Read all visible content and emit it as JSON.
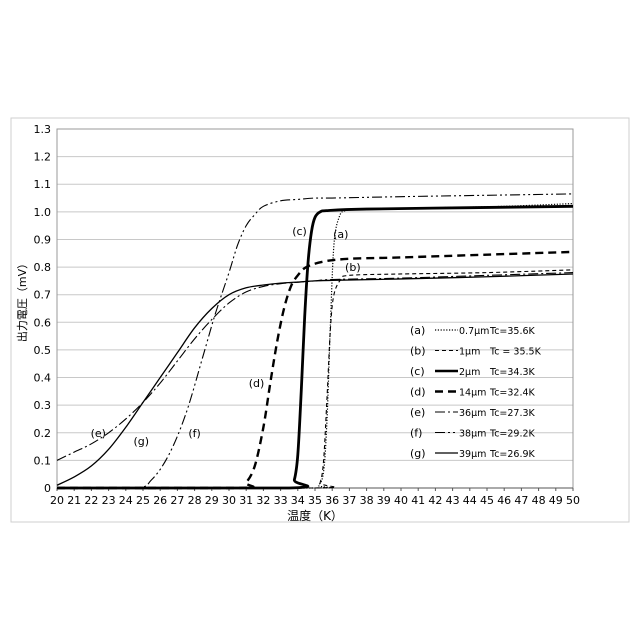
{
  "chart_data": {
    "type": "line",
    "xlabel": "温度（K）",
    "ylabel": "出力電圧（mV）",
    "xlim": [
      20,
      50
    ],
    "ylim": [
      0,
      1.3
    ],
    "xticks": [
      20,
      21,
      22,
      23,
      24,
      25,
      26,
      27,
      28,
      29,
      30,
      31,
      32,
      33,
      34,
      35,
      36,
      37,
      38,
      39,
      40,
      41,
      42,
      43,
      44,
      45,
      46,
      47,
      48,
      49,
      50
    ],
    "yticks": [
      "0",
      "0.1",
      "0.2",
      "0.3",
      "0.4",
      "0.5",
      "0.6",
      "0.7",
      "0.8",
      "0.9",
      "1.0",
      "1.1",
      "1.2",
      "1.3"
    ],
    "grid": "horizontal",
    "legend_position": "lower-right",
    "series": [
      {
        "name": "(a) 0.7μm Tc=35.6K",
        "tag": "(a)",
        "thickness": "0.7μm",
        "tc": "Tc=35.6K",
        "style": "dotted",
        "width": 1.2,
        "x": [
          20,
          34.8,
          35.2,
          35.5,
          35.7,
          35.9,
          36.1,
          36.4,
          36.8,
          38,
          42,
          46,
          50
        ],
        "y": [
          0,
          0,
          0.01,
          0.06,
          0.25,
          0.6,
          0.88,
          0.98,
          1.005,
          1.01,
          1.015,
          1.02,
          1.03
        ]
      },
      {
        "name": "(b) 1μm Tc = 35.5K",
        "tag": "(b)",
        "thickness": "1μm",
        "tc": "Tc = 35.5K",
        "style": "dashed-fine",
        "width": 1.1,
        "x": [
          20,
          35.0,
          35.3,
          35.5,
          35.7,
          35.9,
          36.1,
          36.5,
          37,
          40,
          45,
          50
        ],
        "y": [
          0,
          0,
          0.02,
          0.1,
          0.33,
          0.58,
          0.7,
          0.755,
          0.77,
          0.775,
          0.78,
          0.79
        ]
      },
      {
        "name": "(c) 2μm Tc=34.3K",
        "tag": "(c)",
        "thickness": "2μm",
        "tc": "Tc=34.3K",
        "style": "solid",
        "width": 2.8,
        "x": [
          20,
          33.5,
          33.8,
          34.0,
          34.2,
          34.4,
          34.6,
          34.8,
          35.0,
          35.3,
          35.8,
          38,
          44,
          50
        ],
        "y": [
          0,
          0,
          0.03,
          0.12,
          0.35,
          0.62,
          0.82,
          0.93,
          0.98,
          1.0,
          1.005,
          1.01,
          1.015,
          1.02
        ]
      },
      {
        "name": "(d) 14μm Tc=32.4K",
        "tag": "(d)",
        "thickness": "14μm",
        "tc": "Tc=32.4K",
        "style": "dashed-bold",
        "width": 2.4,
        "x": [
          20,
          30.5,
          31.0,
          31.5,
          32.0,
          32.4,
          32.8,
          33.2,
          33.6,
          34.0,
          34.5,
          35.5,
          37,
          40,
          45,
          50
        ],
        "y": [
          0,
          0,
          0.02,
          0.08,
          0.22,
          0.38,
          0.53,
          0.65,
          0.73,
          0.77,
          0.8,
          0.82,
          0.83,
          0.835,
          0.845,
          0.855
        ]
      },
      {
        "name": "(e) 36μm Tc=27.3K",
        "tag": "(e)",
        "thickness": "36μm",
        "tc": "Tc=27.3K",
        "style": "dash-dot",
        "width": 1.1,
        "x": [
          20,
          21,
          22,
          23,
          24,
          25,
          26,
          27,
          28,
          29,
          30,
          31,
          32,
          33,
          34,
          35,
          36,
          40,
          45,
          50
        ],
        "y": [
          0.1,
          0.13,
          0.16,
          0.2,
          0.25,
          0.31,
          0.38,
          0.46,
          0.54,
          0.61,
          0.67,
          0.71,
          0.73,
          0.74,
          0.745,
          0.75,
          0.755,
          0.76,
          0.77,
          0.78
        ]
      },
      {
        "name": "(f) 38μm Tc=29.2K",
        "tag": "(f)",
        "thickness": "38μm",
        "tc": "Tc=29.2K",
        "style": "dash-dot-dot",
        "width": 1.1,
        "x": [
          20,
          24.5,
          25.5,
          26.5,
          27.5,
          28.5,
          29.2,
          30.0,
          30.5,
          31.0,
          31.5,
          32.0,
          33.0,
          34.0,
          35.0,
          36.0,
          40,
          45,
          50
        ],
        "y": [
          0,
          0,
          0.03,
          0.12,
          0.27,
          0.48,
          0.63,
          0.78,
          0.88,
          0.95,
          0.99,
          1.02,
          1.04,
          1.045,
          1.05,
          1.05,
          1.055,
          1.06,
          1.065
        ]
      },
      {
        "name": "(g) 39μm Tc=26.9K",
        "tag": "(g)",
        "thickness": "39μm",
        "tc": "Tc=26.9K",
        "style": "solid",
        "width": 1.3,
        "x": [
          20,
          21,
          22,
          23,
          24,
          25,
          26,
          27,
          28,
          29,
          30,
          31,
          32,
          33,
          34,
          35,
          36,
          40,
          45,
          50
        ],
        "y": [
          0.01,
          0.04,
          0.08,
          0.14,
          0.22,
          0.31,
          0.4,
          0.49,
          0.58,
          0.65,
          0.7,
          0.725,
          0.735,
          0.742,
          0.746,
          0.75,
          0.752,
          0.757,
          0.765,
          0.775
        ]
      }
    ],
    "curve_labels": [
      {
        "text": "(a)",
        "x": 36.5,
        "y": 0.92
      },
      {
        "text": "(b)",
        "x": 37.2,
        "y": 0.8
      },
      {
        "text": "(c)",
        "x": 34.1,
        "y": 0.93
      },
      {
        "text": "(d)",
        "x": 31.6,
        "y": 0.38
      },
      {
        "text": "(e)",
        "x": 22.4,
        "y": 0.2
      },
      {
        "text": "(f)",
        "x": 28.0,
        "y": 0.2
      },
      {
        "text": "(g)",
        "x": 24.9,
        "y": 0.17
      }
    ]
  }
}
